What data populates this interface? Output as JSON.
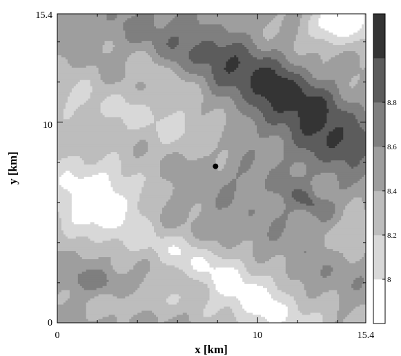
{
  "chart_data": {
    "type": "heatmap",
    "title": "",
    "xlabel": "x [km]",
    "ylabel": "y [km]",
    "xlim": [
      0,
      15.4
    ],
    "ylim": [
      0,
      15.4
    ],
    "x_ticks": [
      "0",
      "10",
      "15.4"
    ],
    "y_ticks": [
      "0",
      "10",
      "15.4"
    ],
    "colorbar": {
      "levels": [
        7.8,
        8.0,
        8.2,
        8.4,
        8.6,
        8.8,
        9.0
      ],
      "tick_labels": [
        "8",
        "8.2",
        "8.4",
        "8.6",
        "8.8"
      ],
      "colors": [
        "#ffffff",
        "#d8d8d8",
        "#bdbdbd",
        "#9e9e9e",
        "#7f7f7f",
        "#5c5c5c",
        "#343434"
      ]
    },
    "marker": {
      "x": 7.9,
      "y": 7.8,
      "color": "#000000"
    },
    "gridding": "2D contour field",
    "field_summary": {
      "dark_band": "diagonal band of highest values (8.8+) from upper-center to right edge",
      "low_spots": [
        "upper-right corner white patch",
        "left-center white patch",
        "bottom-center white patch"
      ]
    }
  }
}
